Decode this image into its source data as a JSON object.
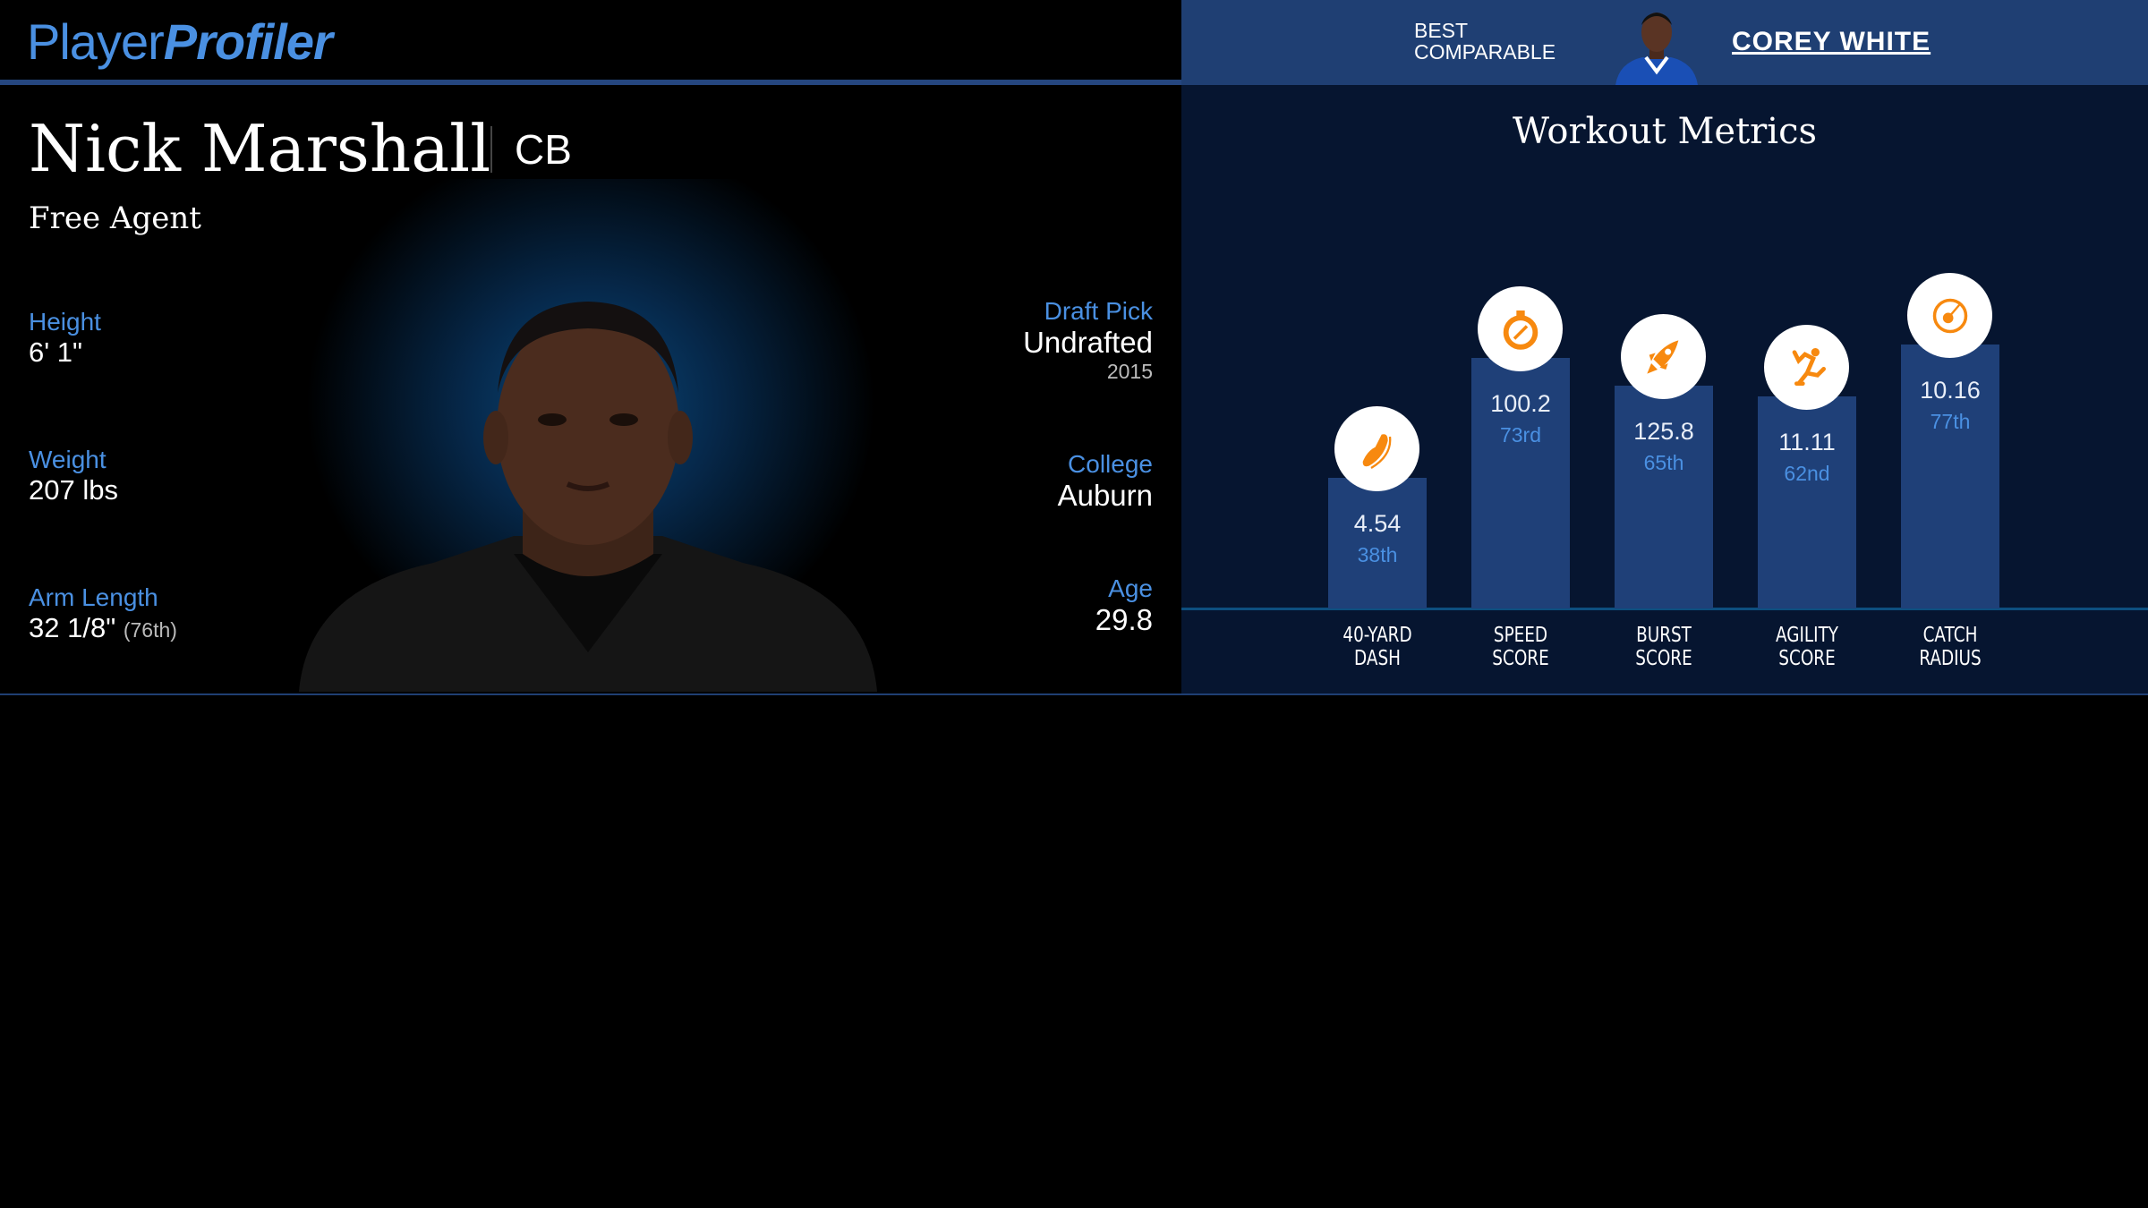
{
  "header": {
    "logo_light": "Player",
    "logo_bold": "Profiler",
    "best_comparable_label": [
      "BEST",
      "COMPARABLE"
    ],
    "best_comparable_name": "COREY WHITE"
  },
  "player": {
    "name": "Nick Marshall",
    "position": "CB",
    "team": "Free Agent",
    "left_stats": [
      {
        "label": "Height",
        "value": "6' 1\"",
        "extra": ""
      },
      {
        "label": "Weight",
        "value": "207 lbs",
        "extra": ""
      },
      {
        "label": "Arm Length",
        "value": "32 1/8\"",
        "extra": "(76th)"
      }
    ],
    "right_stats": [
      {
        "label": "Draft Pick",
        "value": "Undrafted",
        "extra": "2015"
      },
      {
        "label": "College",
        "value": "Auburn",
        "extra": ""
      },
      {
        "label": "Age",
        "value": "29.8",
        "extra": ""
      }
    ]
  },
  "workout": {
    "title": "Workout Metrics",
    "metrics": [
      {
        "label": [
          "40-YARD",
          "DASH"
        ],
        "value": "4.54",
        "percentile_label": "38th",
        "percentile": 38,
        "icon": "shoe-icon"
      },
      {
        "label": [
          "SPEED",
          "SCORE"
        ],
        "value": "100.2",
        "percentile_label": "73rd",
        "percentile": 73,
        "icon": "stopwatch-icon"
      },
      {
        "label": [
          "BURST",
          "SCORE"
        ],
        "value": "125.8",
        "percentile_label": "65th",
        "percentile": 65,
        "icon": "rocket-icon"
      },
      {
        "label": [
          "AGILITY",
          "SCORE"
        ],
        "value": "11.11",
        "percentile_label": "62nd",
        "percentile": 62,
        "icon": "runner-icon"
      },
      {
        "label": [
          "CATCH",
          "RADIUS"
        ],
        "value": "10.16",
        "percentile_label": "77th",
        "percentile": 77,
        "icon": "target-icon"
      }
    ]
  },
  "colors": {
    "accent_blue": "#4a90e2",
    "bar": "#1f4078",
    "header_blue": "#1f3f73",
    "icon_orange": "#f7890f",
    "panel_bg": "#061530"
  }
}
